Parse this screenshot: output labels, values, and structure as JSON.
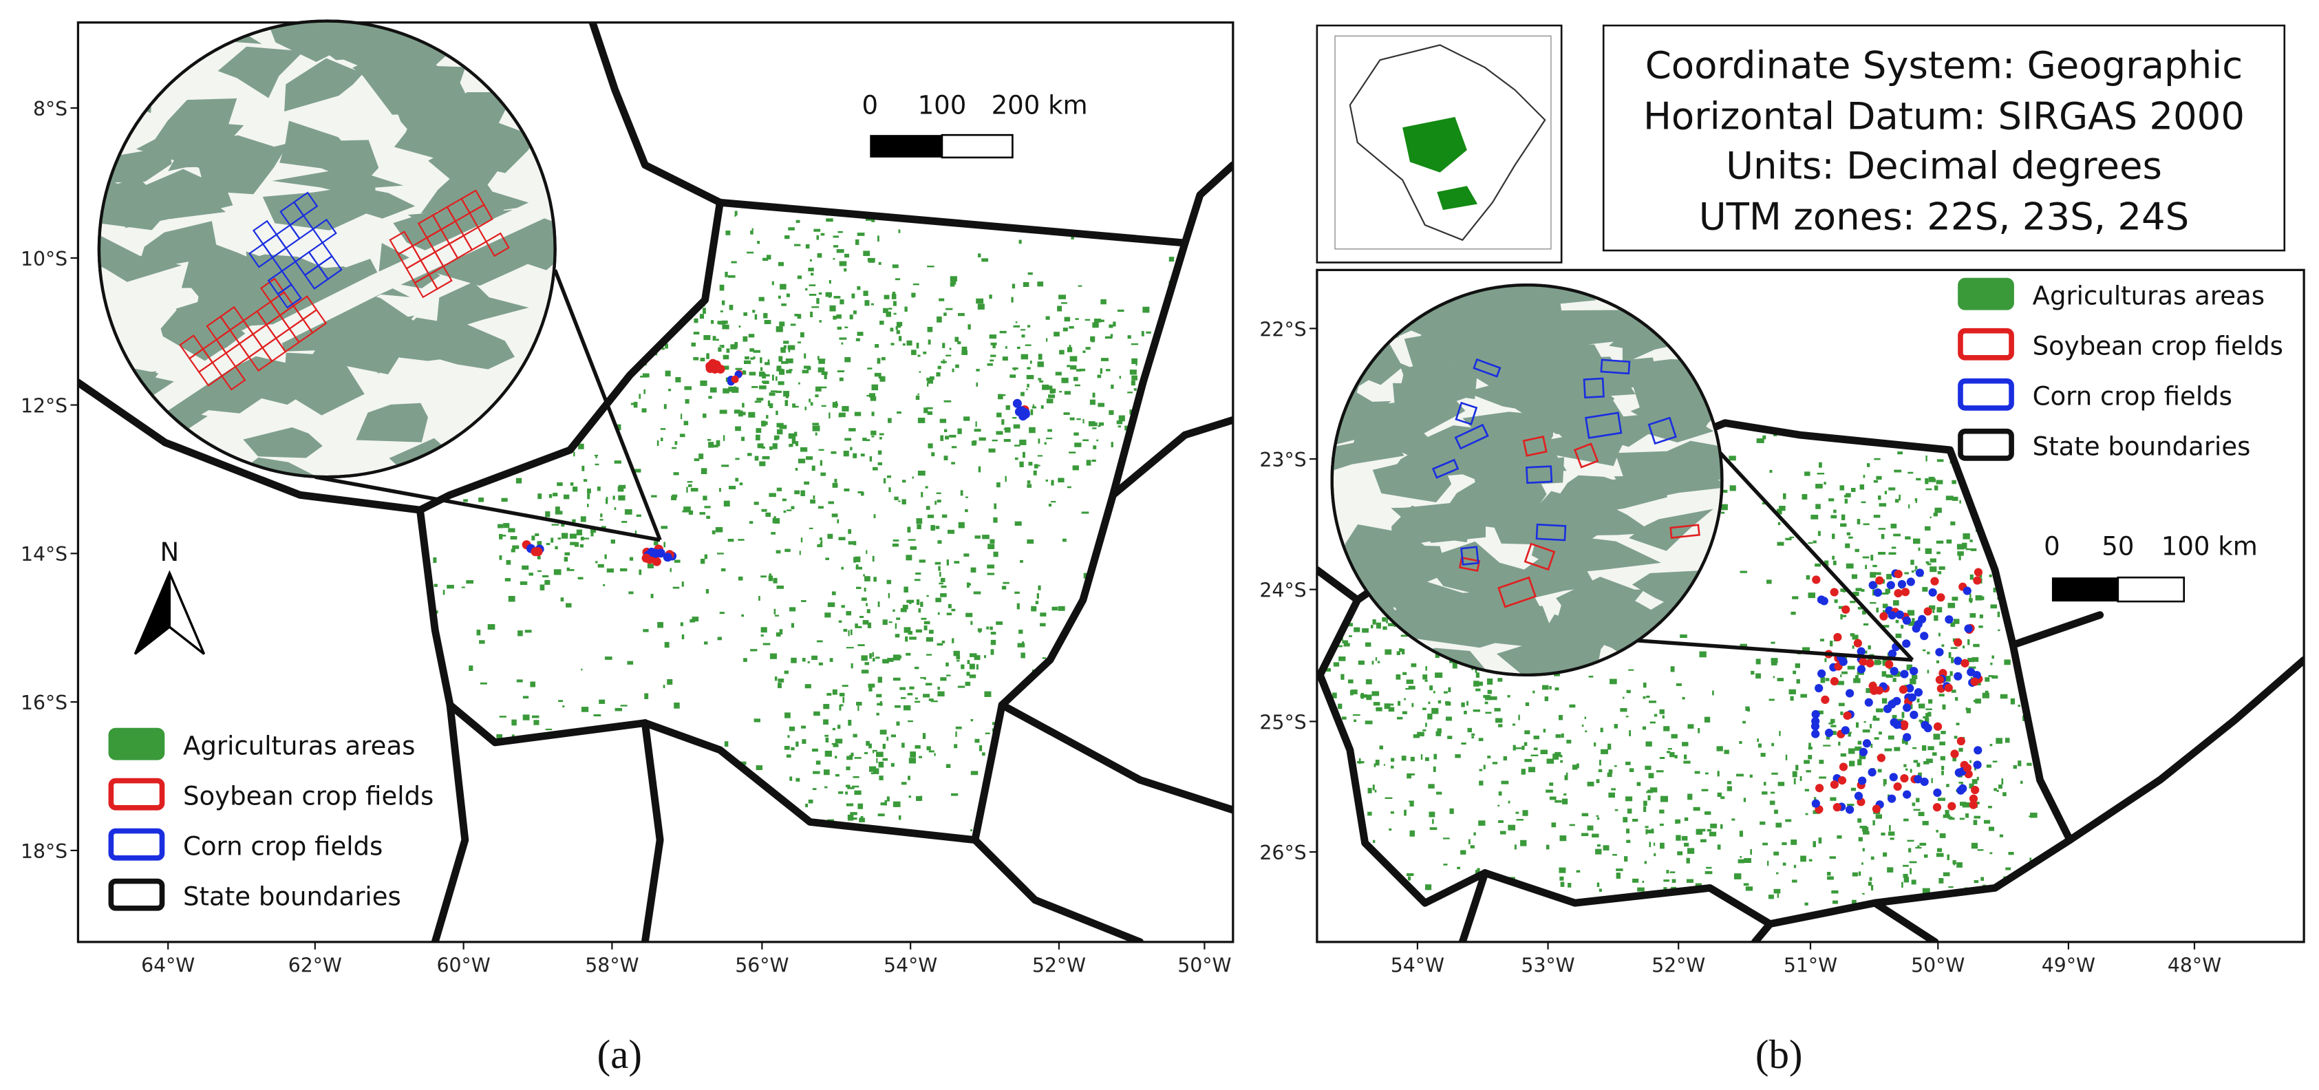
{
  "panels": [
    {
      "caption": "(a)",
      "xticks": [
        "64°W",
        "62°W",
        "60°W",
        "58°W",
        "56°W",
        "54°W",
        "52°W",
        "50°W"
      ],
      "yticks": [
        "8°S",
        "10°S",
        "12°S",
        "14°S",
        "16°S",
        "18°S"
      ],
      "scale_bar": [
        "0",
        "100",
        "200 km"
      ],
      "north": "N",
      "legend": [
        "Agriculturas areas",
        "Soybean crop fields",
        "Corn crop fields",
        "State boundaries"
      ]
    },
    {
      "caption": "(b)",
      "xticks": [
        "54°W",
        "53°W",
        "52°W",
        "51°W",
        "50°W",
        "49°W",
        "48°W"
      ],
      "yticks": [
        "22°S",
        "23°S",
        "24°S",
        "25°S",
        "26°S"
      ],
      "scale_bar": [
        "0",
        "50",
        "100 km"
      ],
      "legend": [
        "Agriculturas areas",
        "Soybean crop fields",
        "Corn crop fields",
        "State boundaries"
      ],
      "info": [
        "Coordinate System: Geographic",
        "Horizontal Datum: SIRGAS 2000",
        "Units: Decimal degrees",
        "UTM zones: 22S, 23S, 24S"
      ]
    }
  ]
}
